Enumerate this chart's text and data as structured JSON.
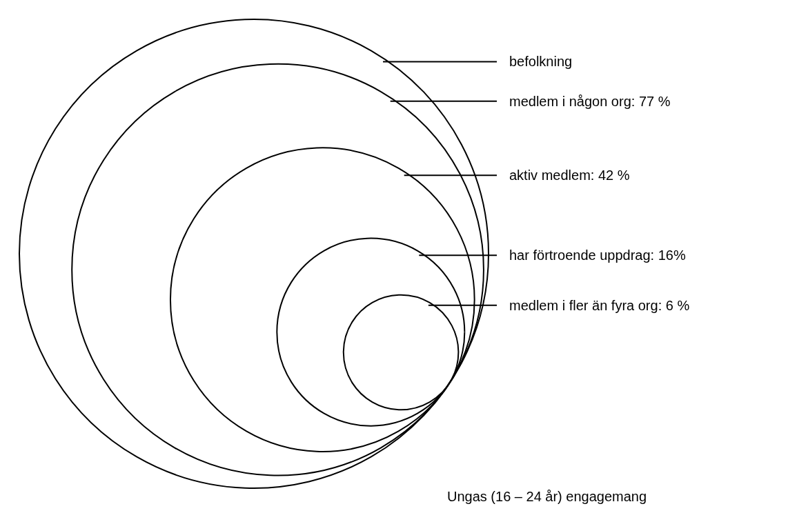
{
  "chart_data": {
    "type": "other",
    "title": "Ungas (16 – 24 år) engagemang",
    "categories": [
      "befolkning",
      "medlem i någon org",
      "aktiv medlem",
      "har förtroende uppdrag",
      "medlem i fler än fyra org"
    ],
    "values": [
      null,
      77,
      42,
      16,
      6
    ],
    "value_labels": [
      null,
      ": 77 %",
      ": 42 %",
      ": 16%",
      ": 6 %"
    ],
    "color": "#000000"
  }
}
